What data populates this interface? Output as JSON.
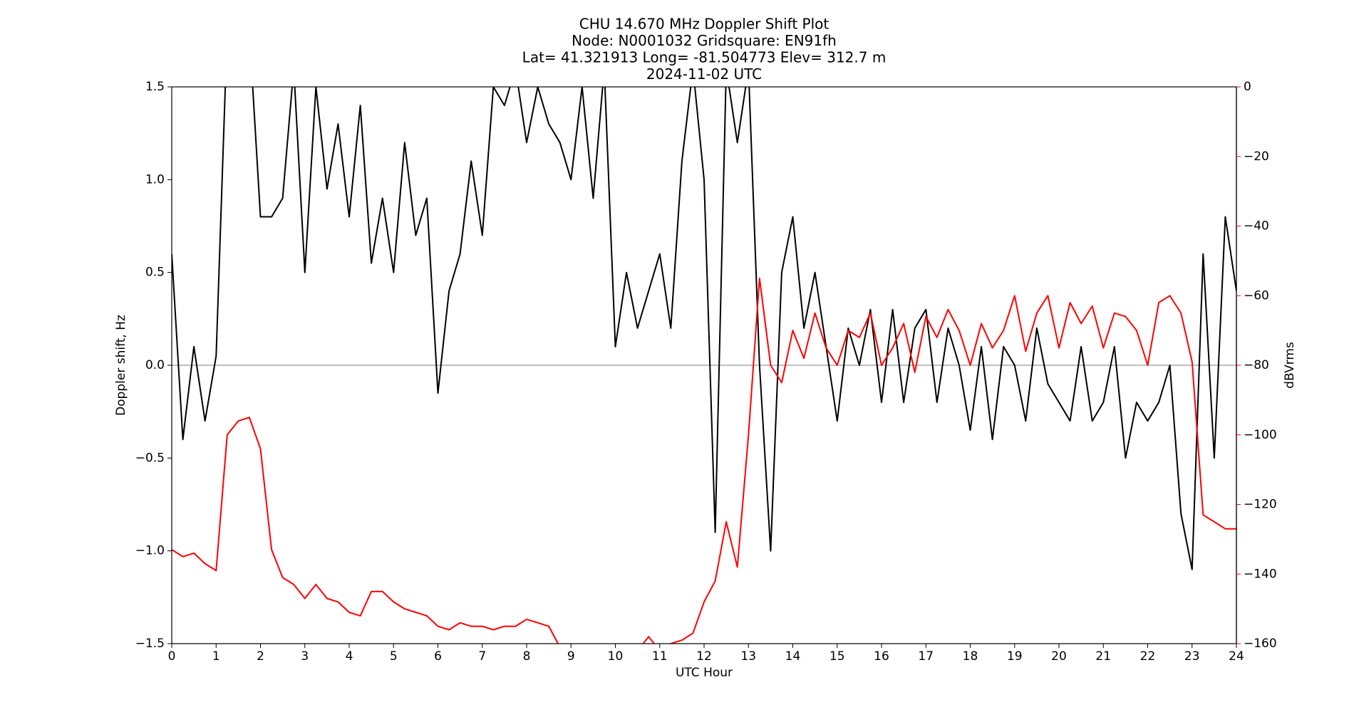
{
  "chart_data": {
    "type": "line",
    "title": [
      "CHU 14.670 MHz Doppler Shift Plot",
      "Node:  N0001032     Gridsquare:  EN91fh",
      "Lat= 41.321913    Long= -81.504773    Elev= 312.7 m",
      "2024-11-02  UTC"
    ],
    "x_label": "UTC Hour",
    "y_label": "Doppler shift, Hz",
    "y2_label": "dBVrms",
    "x": [
      0,
      0.25,
      0.5,
      0.75,
      1,
      1.25,
      1.5,
      1.75,
      2,
      2.25,
      2.5,
      2.75,
      3,
      3.25,
      3.5,
      3.75,
      4,
      4.25,
      4.5,
      4.75,
      5,
      5.25,
      5.5,
      5.75,
      6,
      6.25,
      6.5,
      6.75,
      7,
      7.25,
      7.5,
      7.75,
      8,
      8.25,
      8.5,
      8.75,
      9,
      9.25,
      9.5,
      9.75,
      10,
      10.25,
      10.5,
      10.75,
      11,
      11.25,
      11.5,
      11.75,
      12,
      12.25,
      12.5,
      12.75,
      13,
      13.25,
      13.5,
      13.75,
      14,
      14.25,
      14.5,
      14.75,
      15,
      15.25,
      15.5,
      15.75,
      16,
      16.25,
      16.5,
      16.75,
      17,
      17.25,
      17.5,
      17.75,
      18,
      18.25,
      18.5,
      18.75,
      19,
      19.25,
      19.5,
      19.75,
      20,
      20.25,
      20.5,
      20.75,
      21,
      21.25,
      21.5,
      21.75,
      22,
      22.25,
      22.5,
      22.75,
      23,
      23.25,
      23.5,
      23.75,
      24
    ],
    "series": [
      {
        "name": "Doppler shift",
        "color": "#000000",
        "values": [
          0.6,
          -0.4,
          0.1,
          -0.3,
          0.05,
          1.8,
          1.8,
          1.8,
          0.8,
          0.8,
          0.9,
          1.6,
          0.5,
          1.5,
          0.95,
          1.3,
          0.8,
          1.4,
          0.55,
          0.9,
          0.5,
          1.2,
          0.7,
          0.9,
          -0.15,
          0.4,
          0.6,
          1.1,
          0.7,
          1.5,
          1.4,
          1.6,
          1.2,
          1.5,
          1.3,
          1.2,
          1.0,
          1.5,
          0.9,
          1.6,
          0.1,
          0.5,
          0.2,
          0.4,
          0.6,
          0.2,
          1.1,
          1.6,
          1.0,
          -0.9,
          1.6,
          1.2,
          1.6,
          0.0,
          -1.0,
          0.5,
          0.8,
          0.2,
          0.5,
          0.1,
          -0.3,
          0.2,
          0.0,
          0.3,
          -0.2,
          0.3,
          -0.2,
          0.2,
          0.3,
          -0.2,
          0.2,
          0.0,
          -0.35,
          0.1,
          -0.4,
          0.1,
          0.0,
          -0.3,
          0.2,
          -0.1,
          -0.2,
          -0.3,
          0.1,
          -0.3,
          -0.2,
          0.1,
          -0.5,
          -0.2,
          -0.3,
          -0.2,
          0.0,
          -0.8,
          -1.1,
          0.6,
          -0.5,
          0.8,
          0.4
        ]
      },
      {
        "name": "dBVrms",
        "color": "#ff0000",
        "axis": "y2",
        "values": [
          -133,
          -135,
          -134,
          -137,
          -139,
          -100,
          -96,
          -95,
          -104,
          -133,
          -141,
          -143,
          -147,
          -143,
          -147,
          -148,
          -151,
          -152,
          -145,
          -145,
          -148,
          -150,
          -151,
          -152,
          -155,
          -156,
          -154,
          -155,
          -155,
          -156,
          -155,
          -155,
          -153,
          -154,
          -155,
          -161,
          -163,
          -163,
          -164,
          -163,
          -164,
          -162,
          -162,
          -158,
          -162,
          -160,
          -159,
          -157,
          -148,
          -142,
          -125,
          -138,
          -100,
          -55,
          -80,
          -85,
          -70,
          -78,
          -65,
          -75,
          -80,
          -70,
          -72,
          -65,
          -80,
          -75,
          -68,
          -82,
          -66,
          -72,
          -64,
          -70,
          -80,
          -68,
          -75,
          -70,
          -60,
          -76,
          -65,
          -60,
          -75,
          -62,
          -68,
          -63,
          -75,
          -65,
          -66,
          -70,
          -80,
          -62,
          -60,
          -65,
          -79,
          -123,
          -125,
          -127,
          -127
        ]
      }
    ],
    "xlim": [
      0,
      24
    ],
    "xticks": [
      0,
      1,
      2,
      3,
      4,
      5,
      6,
      7,
      8,
      9,
      10,
      11,
      12,
      13,
      14,
      15,
      16,
      17,
      18,
      19,
      20,
      21,
      22,
      23,
      24
    ],
    "ylim": [
      -1.5,
      1.5
    ],
    "yticks": [
      {
        "value": -1.5,
        "label": "−1.5"
      },
      {
        "value": -1.0,
        "label": "−1.0"
      },
      {
        "value": -0.5,
        "label": "−0.5"
      },
      {
        "value": 0.0,
        "label": "0.0"
      },
      {
        "value": 0.5,
        "label": "0.5"
      },
      {
        "value": 1.0,
        "label": "1.0"
      },
      {
        "value": 1.5,
        "label": "1.5"
      }
    ],
    "y2lim": [
      -160,
      0
    ],
    "y2ticks": [
      0,
      {
        "value": -20,
        "label": "−20"
      },
      {
        "value": -40,
        "label": "−40"
      },
      {
        "value": -60,
        "label": "−60"
      },
      {
        "value": -80,
        "label": "−80"
      },
      {
        "value": -100,
        "label": "−100"
      },
      {
        "value": -120,
        "label": "−120"
      },
      {
        "value": -140,
        "label": "−140"
      },
      {
        "value": -160,
        "label": "−160"
      }
    ],
    "reference_line": 0,
    "reference_color": "#999999",
    "y2_color": "#ff0000",
    "grid": false
  }
}
